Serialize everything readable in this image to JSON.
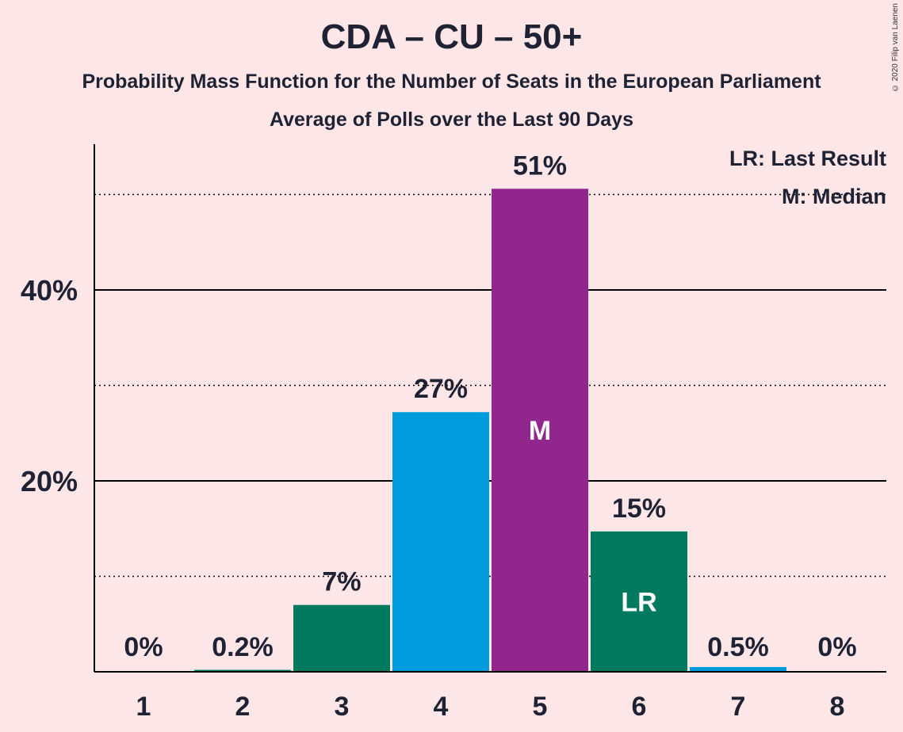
{
  "title": "CDA – CU – 50+",
  "subtitle": "Probability Mass Function for the Number of Seats in the European Parliament",
  "subtitle2": "Average of Polls over the Last 90 Days",
  "copyright": "© 2020 Filip van Laenen",
  "legend": {
    "last_result": "LR: Last Result",
    "median": "M: Median"
  },
  "chart_data": {
    "type": "bar",
    "categories": [
      "1",
      "2",
      "3",
      "4",
      "5",
      "6",
      "7",
      "8"
    ],
    "values": [
      0,
      0.2,
      7,
      27.2,
      50.6,
      14.7,
      0.5,
      0
    ],
    "value_labels": [
      "0%",
      "0.2%",
      "7%",
      "27%",
      "51%",
      "15%",
      "0.5%",
      "0%"
    ],
    "bar_colors": [
      "#007a5e",
      "#007a5e",
      "#007a5e",
      "#009bdc",
      "#91278d",
      "#007a5e",
      "#009bdc",
      "#007a5e"
    ],
    "bar_markers": [
      "",
      "",
      "",
      "",
      "M",
      "LR",
      "",
      ""
    ],
    "y_ticks": [
      "20%",
      "40%"
    ],
    "y_tick_values": [
      20,
      40
    ],
    "y_dotted_values": [
      10,
      30,
      50
    ],
    "ylim": [
      0,
      55
    ],
    "grid": true,
    "legend_position": "top-right"
  }
}
